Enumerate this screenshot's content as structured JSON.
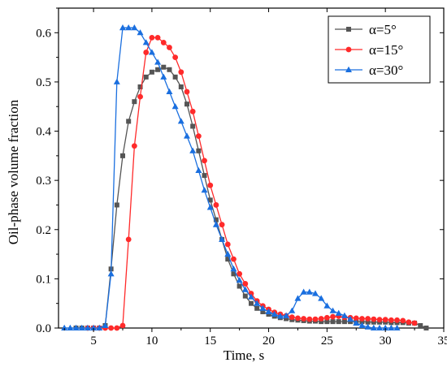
{
  "chart_data": {
    "type": "line",
    "title": "",
    "xlabel": "Time, s",
    "ylabel": "Oil-phase volume fraction",
    "xlim": [
      2,
      35
    ],
    "ylim": [
      0,
      0.65
    ],
    "xticks": [
      5,
      10,
      15,
      20,
      25,
      30,
      35
    ],
    "yticks": [
      0.0,
      0.1,
      0.2,
      0.3,
      0.4,
      0.5,
      0.6
    ],
    "xtick_labels": [
      "5",
      "10",
      "15",
      "20",
      "25",
      "30",
      "35"
    ],
    "ytick_labels": [
      "0.0",
      "0.1",
      "0.2",
      "0.3",
      "0.4",
      "0.5",
      "0.6"
    ],
    "grid": false,
    "legend_position": "top-right",
    "series": [
      {
        "name": "α=5°",
        "color": "#555555",
        "marker": "square",
        "points": [
          [
            3.5,
            0
          ],
          [
            4,
            0
          ],
          [
            4.5,
            0
          ],
          [
            5,
            0
          ],
          [
            5.5,
            0
          ],
          [
            6,
            0.005
          ],
          [
            6.5,
            0.12
          ],
          [
            7,
            0.25
          ],
          [
            7.5,
            0.35
          ],
          [
            8,
            0.42
          ],
          [
            8.5,
            0.46
          ],
          [
            9,
            0.49
          ],
          [
            9.5,
            0.51
          ],
          [
            10,
            0.52
          ],
          [
            10.5,
            0.525
          ],
          [
            11,
            0.53
          ],
          [
            11.5,
            0.525
          ],
          [
            12,
            0.51
          ],
          [
            12.5,
            0.49
          ],
          [
            13,
            0.455
          ],
          [
            13.5,
            0.41
          ],
          [
            14,
            0.36
          ],
          [
            14.5,
            0.31
          ],
          [
            15,
            0.26
          ],
          [
            15.5,
            0.22
          ],
          [
            16,
            0.18
          ],
          [
            16.5,
            0.14
          ],
          [
            17,
            0.11
          ],
          [
            17.5,
            0.085
          ],
          [
            18,
            0.065
          ],
          [
            18.5,
            0.05
          ],
          [
            19,
            0.04
          ],
          [
            19.5,
            0.033
          ],
          [
            20,
            0.028
          ],
          [
            20.5,
            0.024
          ],
          [
            21,
            0.021
          ],
          [
            21.5,
            0.019
          ],
          [
            22,
            0.017
          ],
          [
            22.5,
            0.016
          ],
          [
            23,
            0.015
          ],
          [
            23.5,
            0.014
          ],
          [
            24,
            0.014
          ],
          [
            24.5,
            0.013
          ],
          [
            25,
            0.013
          ],
          [
            25.5,
            0.013
          ],
          [
            26,
            0.013
          ],
          [
            26.5,
            0.013
          ],
          [
            27,
            0.013
          ],
          [
            27.5,
            0.013
          ],
          [
            28,
            0.013
          ],
          [
            28.5,
            0.012
          ],
          [
            29,
            0.012
          ],
          [
            29.5,
            0.012
          ],
          [
            30,
            0.012
          ],
          [
            30.5,
            0.011
          ],
          [
            31,
            0.011
          ],
          [
            31.5,
            0.011
          ],
          [
            32,
            0.01
          ],
          [
            32.5,
            0.01
          ],
          [
            33,
            0.005
          ],
          [
            33.5,
            0
          ]
        ]
      },
      {
        "name": "α=15°",
        "color": "#ff2a2a",
        "marker": "circle",
        "points": [
          [
            4.5,
            0
          ],
          [
            5,
            0
          ],
          [
            5.5,
            0
          ],
          [
            6,
            0
          ],
          [
            6.5,
            0
          ],
          [
            7,
            0
          ],
          [
            7.5,
            0.005
          ],
          [
            8,
            0.18
          ],
          [
            8.5,
            0.37
          ],
          [
            9,
            0.47
          ],
          [
            9.5,
            0.56
          ],
          [
            10,
            0.59
          ],
          [
            10.5,
            0.59
          ],
          [
            11,
            0.58
          ],
          [
            11.5,
            0.57
          ],
          [
            12,
            0.55
          ],
          [
            12.5,
            0.52
          ],
          [
            13,
            0.48
          ],
          [
            13.5,
            0.44
          ],
          [
            14,
            0.39
          ],
          [
            14.5,
            0.34
          ],
          [
            15,
            0.29
          ],
          [
            15.5,
            0.25
          ],
          [
            16,
            0.21
          ],
          [
            16.5,
            0.17
          ],
          [
            17,
            0.14
          ],
          [
            17.5,
            0.11
          ],
          [
            18,
            0.09
          ],
          [
            18.5,
            0.07
          ],
          [
            19,
            0.055
          ],
          [
            19.5,
            0.045
          ],
          [
            20,
            0.038
          ],
          [
            20.5,
            0.032
          ],
          [
            21,
            0.028
          ],
          [
            21.5,
            0.025
          ],
          [
            22,
            0.022
          ],
          [
            22.5,
            0.02
          ],
          [
            23,
            0.019
          ],
          [
            23.5,
            0.018
          ],
          [
            24,
            0.018
          ],
          [
            24.5,
            0.019
          ],
          [
            25,
            0.021
          ],
          [
            25.5,
            0.023
          ],
          [
            26,
            0.024
          ],
          [
            26.5,
            0.022
          ],
          [
            27,
            0.021
          ],
          [
            27.5,
            0.02
          ],
          [
            28,
            0.019
          ],
          [
            28.5,
            0.019
          ],
          [
            29,
            0.018
          ],
          [
            29.5,
            0.017
          ],
          [
            30,
            0.017
          ],
          [
            30.5,
            0.016
          ],
          [
            31,
            0.016
          ],
          [
            31.5,
            0.015
          ],
          [
            32,
            0.012
          ],
          [
            32.5,
            0.01
          ]
        ]
      },
      {
        "name": "α=30°",
        "color": "#1a6fdf",
        "marker": "triangle",
        "points": [
          [
            2.5,
            0
          ],
          [
            3,
            0
          ],
          [
            3.5,
            0
          ],
          [
            4,
            0
          ],
          [
            4.5,
            0
          ],
          [
            5,
            0
          ],
          [
            5.5,
            0
          ],
          [
            6,
            0.005
          ],
          [
            6.5,
            0.11
          ],
          [
            7,
            0.5
          ],
          [
            7.5,
            0.61
          ],
          [
            8,
            0.61
          ],
          [
            8.5,
            0.61
          ],
          [
            9,
            0.6
          ],
          [
            9.5,
            0.58
          ],
          [
            10,
            0.56
          ],
          [
            10.5,
            0.54
          ],
          [
            11,
            0.51
          ],
          [
            11.5,
            0.48
          ],
          [
            12,
            0.45
          ],
          [
            12.5,
            0.42
          ],
          [
            13,
            0.39
          ],
          [
            13.5,
            0.36
          ],
          [
            14,
            0.32
          ],
          [
            14.5,
            0.28
          ],
          [
            15,
            0.245
          ],
          [
            15.5,
            0.21
          ],
          [
            16,
            0.18
          ],
          [
            16.5,
            0.15
          ],
          [
            17,
            0.12
          ],
          [
            17.5,
            0.097
          ],
          [
            18,
            0.078
          ],
          [
            18.5,
            0.063
          ],
          [
            19,
            0.05
          ],
          [
            19.5,
            0.04
          ],
          [
            20,
            0.033
          ],
          [
            20.5,
            0.028
          ],
          [
            21,
            0.024
          ],
          [
            21.5,
            0.025
          ],
          [
            22,
            0.035
          ],
          [
            22.5,
            0.06
          ],
          [
            23,
            0.073
          ],
          [
            23.5,
            0.073
          ],
          [
            24,
            0.07
          ],
          [
            24.5,
            0.06
          ],
          [
            25,
            0.045
          ],
          [
            25.5,
            0.035
          ],
          [
            26,
            0.03
          ],
          [
            26.5,
            0.025
          ],
          [
            27,
            0.018
          ],
          [
            27.5,
            0.01
          ],
          [
            28,
            0.005
          ],
          [
            28.5,
            0.002
          ],
          [
            29,
            0
          ],
          [
            29.5,
            0
          ],
          [
            30,
            0
          ],
          [
            30.5,
            0
          ],
          [
            31,
            0
          ]
        ]
      }
    ]
  }
}
